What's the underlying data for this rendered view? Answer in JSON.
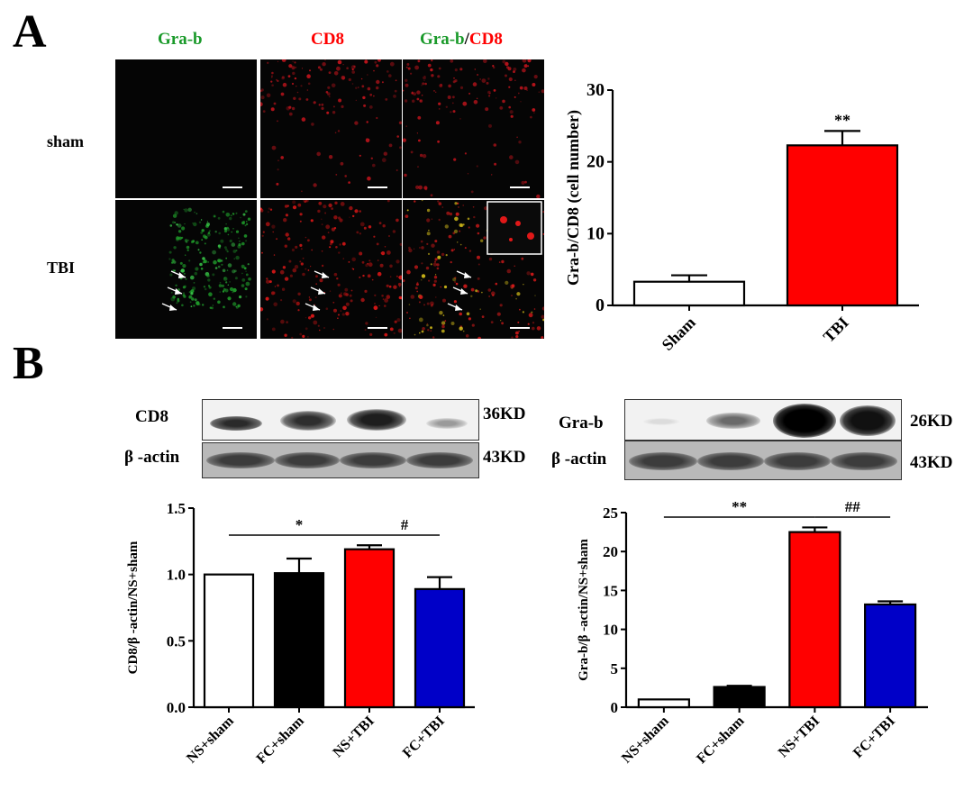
{
  "panel_a": {
    "letter": "A",
    "columns": [
      "Gra-b",
      "CD8",
      "Gra-b",
      "/",
      "CD8"
    ],
    "rows": [
      "sham",
      "TBI"
    ]
  },
  "panel_b": {
    "letter": "B",
    "blot_left": {
      "protein": "CD8",
      "protein_kd": "36KD",
      "loading": "β -actin",
      "loading_kd": "43KD"
    },
    "blot_right": {
      "protein": "Gra-b",
      "protein_kd": "26KD",
      "loading": "β -actin",
      "loading_kd": "43KD"
    }
  },
  "colors": {
    "green": "#1a9a2a",
    "red": "#ff0000",
    "blue": "#0000c8",
    "black": "#000000",
    "white": "#ffffff"
  },
  "chart_data": [
    {
      "id": "chartA",
      "type": "bar",
      "ylabel": "Gra-b/CD8 (cell number)",
      "xlabel": "",
      "categories": [
        "Sham",
        "TBI"
      ],
      "values": [
        3.3,
        22.3
      ],
      "errors": [
        0.9,
        2.0
      ],
      "bar_colors": [
        "#ffffff",
        "#ff0000"
      ],
      "ylim": [
        0,
        30
      ],
      "yticks": [
        "0",
        "10",
        "20",
        "30"
      ],
      "annotations": [
        {
          "text": "**",
          "category": "TBI"
        }
      ]
    },
    {
      "id": "chartB1",
      "type": "bar",
      "ylabel": "CD8/β -actin/NS+sham",
      "xlabel": "",
      "categories": [
        "NS+sham",
        "FC+sham",
        "NS+TBI",
        "FC+TBI"
      ],
      "values": [
        1.0,
        1.01,
        1.19,
        0.89
      ],
      "errors": [
        0.0,
        0.11,
        0.03,
        0.09
      ],
      "bar_colors": [
        "#ffffff",
        "#000000",
        "#ff0000",
        "#0000c8"
      ],
      "ylim": [
        0,
        1.5
      ],
      "yticks": [
        "0.0",
        "0.5",
        "1.0",
        "1.5"
      ],
      "significance": [
        {
          "text": "*",
          "from": "NS+sham",
          "to": "NS+TBI"
        },
        {
          "text": "#",
          "from": "NS+TBI",
          "to": "FC+TBI"
        }
      ]
    },
    {
      "id": "chartB2",
      "type": "bar",
      "ylabel": "Gra-b/β -actin/NS+sham",
      "xlabel": "",
      "categories": [
        "NS+sham",
        "FC+sham",
        "NS+TBI",
        "FC+TBI"
      ],
      "values": [
        1.0,
        2.6,
        22.5,
        13.2
      ],
      "errors": [
        0.0,
        0.15,
        0.6,
        0.4
      ],
      "bar_colors": [
        "#ffffff",
        "#000000",
        "#ff0000",
        "#0000c8"
      ],
      "ylim": [
        0,
        25
      ],
      "yticks": [
        "0",
        "5",
        "10",
        "15",
        "20",
        "25"
      ],
      "significance": [
        {
          "text": "**",
          "from": "NS+sham",
          "to": "NS+TBI"
        },
        {
          "text": "##",
          "from": "NS+TBI",
          "to": "FC+TBI"
        }
      ]
    }
  ]
}
